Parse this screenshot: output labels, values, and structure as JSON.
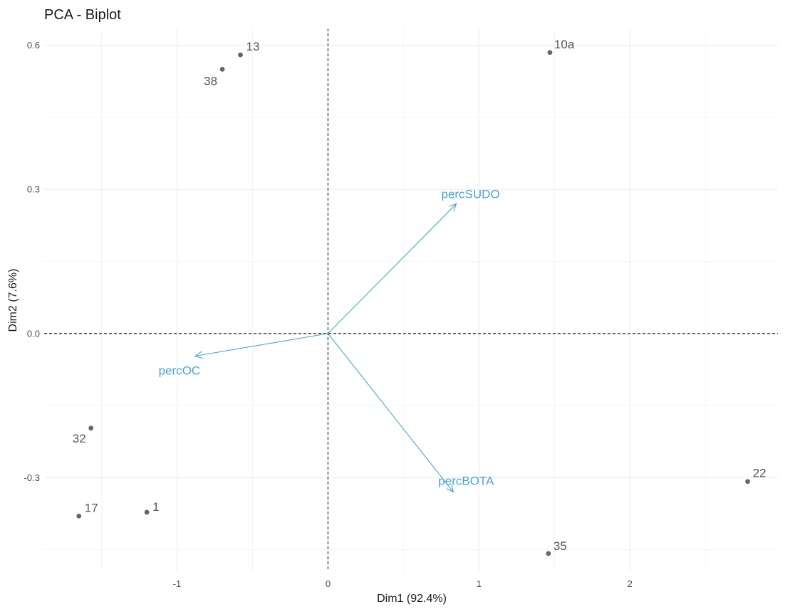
{
  "chart_data": {
    "type": "scatter",
    "title": "PCA - Biplot",
    "xlabel": "Dim1 (92.4%)",
    "ylabel": "Dim2 (7.6%)",
    "xlim": [
      -1.88,
      2.98
    ],
    "ylim": [
      -0.495,
      0.635
    ],
    "x_ticks": [
      -1,
      0,
      1,
      2
    ],
    "x_tick_labels": [
      "-1",
      "0",
      "1",
      "2"
    ],
    "y_ticks": [
      -0.3,
      0.0,
      0.3,
      0.6
    ],
    "y_tick_labels": [
      "-0.3",
      "0.0",
      "0.3",
      "0.6"
    ],
    "grid": true,
    "zero_lines": "dashed",
    "points": [
      {
        "label": "13",
        "x": -0.58,
        "y": 0.58
      },
      {
        "label": "38",
        "x": -0.7,
        "y": 0.55
      },
      {
        "label": "10a",
        "x": 1.47,
        "y": 0.585
      },
      {
        "label": "32",
        "x": -1.57,
        "y": -0.197
      },
      {
        "label": "17",
        "x": -1.65,
        "y": -0.38
      },
      {
        "label": "1",
        "x": -1.2,
        "y": -0.372
      },
      {
        "label": "22",
        "x": 2.78,
        "y": -0.308
      },
      {
        "label": "35",
        "x": 1.46,
        "y": -0.458
      }
    ],
    "point_color": "#666666",
    "variables": [
      {
        "label": "percSUDO",
        "x": 0.85,
        "y": 0.27
      },
      {
        "label": "percOC",
        "x": -0.88,
        "y": -0.047
      },
      {
        "label": "percBOTA",
        "x": 0.83,
        "y": -0.33
      }
    ],
    "variable_color": "#4aa3d6"
  }
}
